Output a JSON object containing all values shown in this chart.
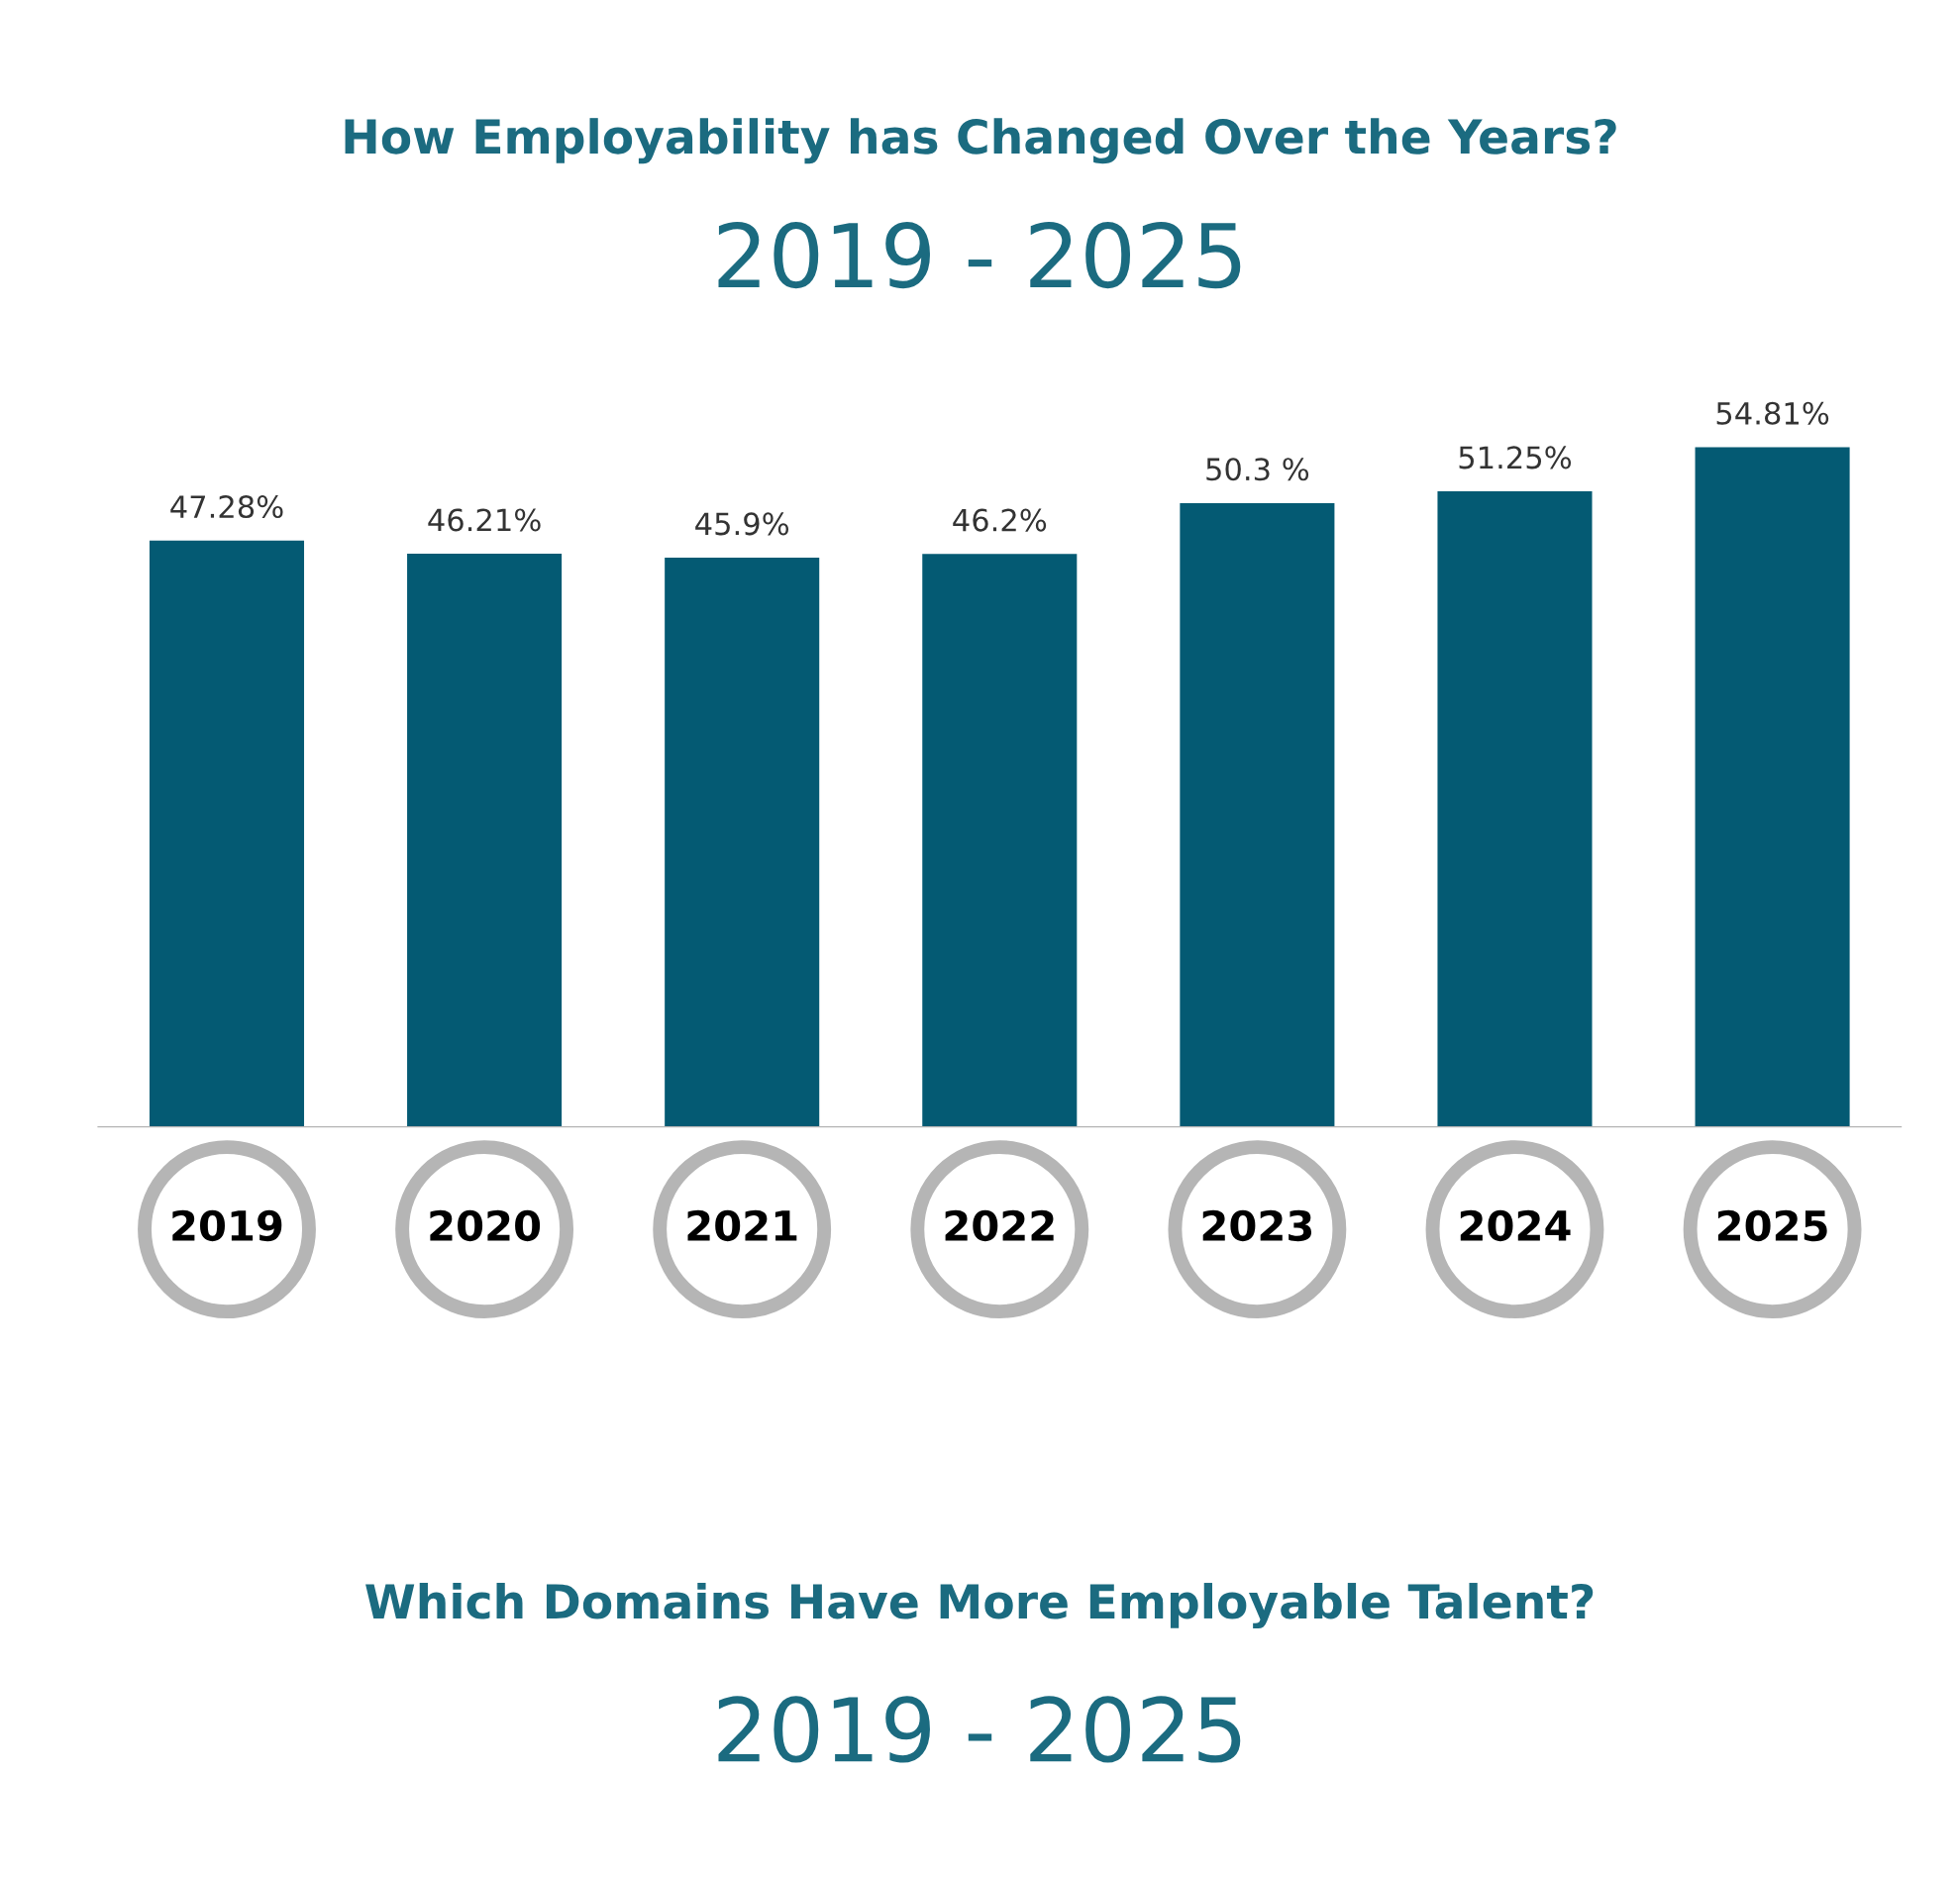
{
  "chart_data": {
    "type": "bar",
    "title": "How Employability has Changed Over the Years?",
    "subtitle": "2019 - 2025",
    "categories": [
      "2019",
      "2020",
      "2021",
      "2022",
      "2023",
      "2024",
      "2025"
    ],
    "values": [
      47.28,
      46.21,
      45.9,
      46.2,
      50.3,
      51.25,
      54.81
    ],
    "value_labels": [
      "47.28%",
      "46.21%",
      "45.9%",
      "46.2%",
      "50.3 %",
      "51.25%",
      "54.81%"
    ],
    "color": "#045a73",
    "tick_labels": "x",
    "annotations": [
      "Which Domains Have More Employable Talent?",
      "2019 - 2025"
    ]
  }
}
